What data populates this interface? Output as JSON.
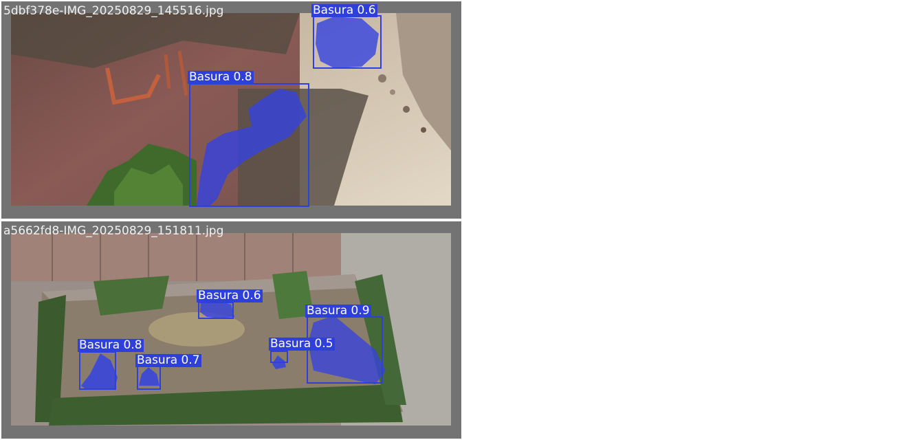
{
  "images": [
    {
      "filename": "5dbf378e-IMG_20250829_145516.jpg",
      "detections": [
        {
          "label": "Basura",
          "score": "0.6",
          "mask_color": "#3442e0"
        },
        {
          "label": "Basura",
          "score": "0.8",
          "mask_color": "#3442e0"
        }
      ]
    },
    {
      "filename": "a5662fd8-IMG_20250829_151811.jpg",
      "detections": [
        {
          "label": "Basura",
          "score": "0.6",
          "mask_color": "#3442e0"
        },
        {
          "label": "Basura",
          "score": "0.9",
          "mask_color": "#3442e0"
        },
        {
          "label": "Basura",
          "score": "0.8",
          "mask_color": "#3442e0"
        },
        {
          "label": "Basura",
          "score": "0.7",
          "mask_color": "#3442e0"
        },
        {
          "label": "Basura",
          "score": "0.5",
          "mask_color": "#3442e0"
        }
      ]
    }
  ],
  "colors": {
    "panel_background": "#737373",
    "detection_box": "#2f3fd9",
    "label_text": "#ffffff"
  }
}
